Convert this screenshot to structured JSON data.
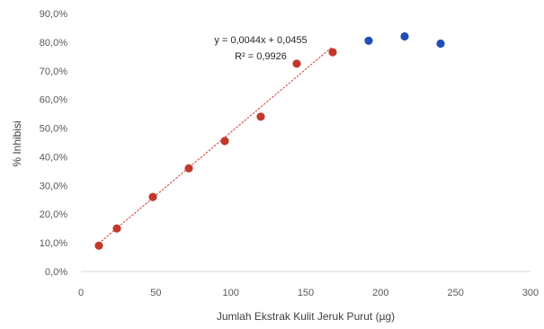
{
  "chart_data": {
    "type": "scatter",
    "title": "",
    "xlabel": "Jumlah Ekstrak Kulit Jeruk Purut (µg)",
    "ylabel": "% Inhibisi",
    "xlim": [
      0,
      300
    ],
    "ylim": [
      0,
      0.9
    ],
    "x_ticks": [
      "0",
      "50",
      "100",
      "150",
      "200",
      "250",
      "300"
    ],
    "y_ticks": [
      "0,0%",
      "10,0%",
      "20,0%",
      "30,0%",
      "40,0%",
      "50,0%",
      "60,0%",
      "70,0%",
      "80,0%",
      "90,0%"
    ],
    "grid": false,
    "legend": "none",
    "series": [
      {
        "color": "#c0392b",
        "points": [
          {
            "x": 12,
            "y": 0.09
          },
          {
            "x": 24,
            "y": 0.15
          },
          {
            "x": 48,
            "y": 0.26
          },
          {
            "x": 72,
            "y": 0.36
          },
          {
            "x": 96,
            "y": 0.455
          },
          {
            "x": 120,
            "y": 0.54
          },
          {
            "x": 144,
            "y": 0.725
          },
          {
            "x": 168,
            "y": 0.765
          }
        ]
      },
      {
        "color": "#1f4fb4",
        "points": [
          {
            "x": 192,
            "y": 0.805
          },
          {
            "x": 216,
            "y": 0.82
          },
          {
            "x": 240,
            "y": 0.795
          }
        ]
      }
    ],
    "trendline": {
      "style": "dotted",
      "color": "#d9534f",
      "slope": 0.0044,
      "intercept": 0.0455,
      "x_range": [
        12,
        168
      ],
      "equation": "y = 0,0044x + 0,0455",
      "r_squared": "R² = 0,9926"
    }
  }
}
